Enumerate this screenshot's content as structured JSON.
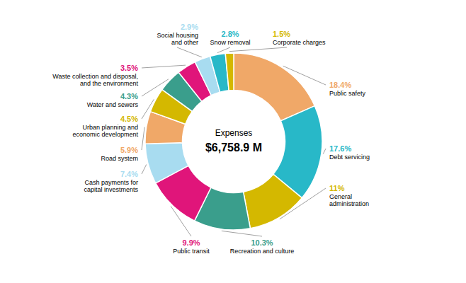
{
  "chart_data": {
    "type": "donut",
    "title": "Expenses",
    "subtitle": "$6,758.9 M",
    "categories": [
      "Public safety",
      "Debt servicing",
      "General\nadministration",
      "Recreation and culture",
      "Public transit",
      "Cash payments for\ncapital investments",
      "Road system",
      "Urban planning and\neconomic development",
      "Water and sewers",
      "Waste collection and disposal,\nand the environment",
      "Social housing\nand other",
      "Snow removal",
      "Corporate charges"
    ],
    "values": [
      18.4,
      17.6,
      11.0,
      10.3,
      9.9,
      7.4,
      5.9,
      4.5,
      4.3,
      3.5,
      2.9,
      2.8,
      1.5
    ],
    "value_labels": [
      "18.4%",
      "17.6%",
      "11%",
      "10.3%",
      "9.9%",
      "7.4%",
      "5.9%",
      "4.5%",
      "4.3%",
      "3.5%",
      "2.9%",
      "2.8%",
      "1.5%"
    ],
    "colors": [
      "#F0A868",
      "#28B8C8",
      "#D4B800",
      "#3A9E8C",
      "#E0157A",
      "#A8DCF0",
      "#F0A868",
      "#D4B800",
      "#3A9E8C",
      "#E0157A",
      "#A8DCF0",
      "#28B8C8",
      "#D4B800"
    ],
    "data_labels": true
  }
}
